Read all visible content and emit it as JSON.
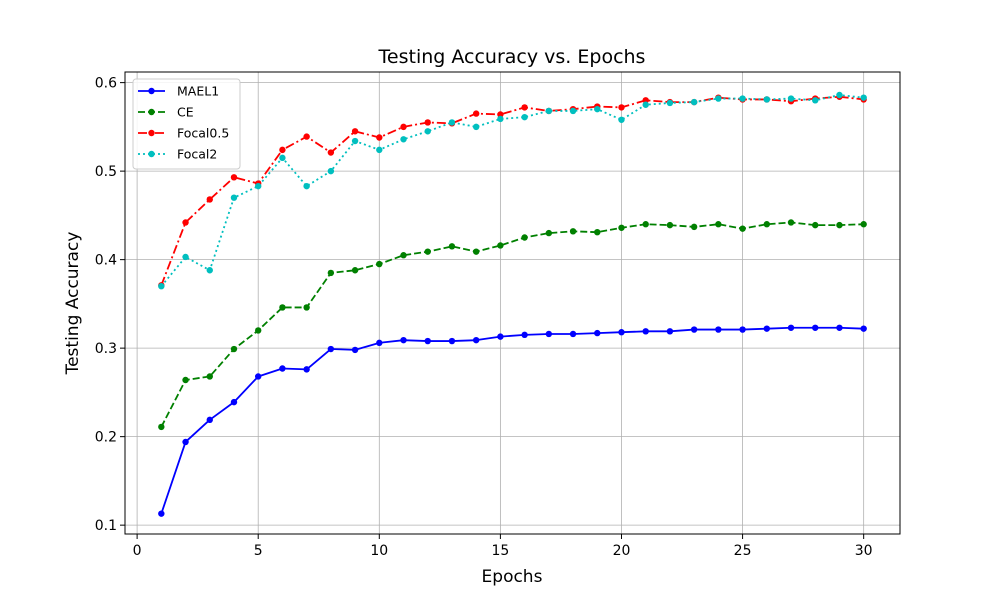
{
  "chart_data": {
    "type": "line",
    "title": "Testing Accuracy vs. Epochs",
    "xlabel": "Epochs",
    "ylabel": "Testing Accuracy",
    "xlim": [
      -0.5,
      31.5
    ],
    "ylim": [
      0.09,
      0.612
    ],
    "xticks": [
      0,
      5,
      10,
      15,
      20,
      25,
      30
    ],
    "yticks": [
      0.1,
      0.2,
      0.3,
      0.4,
      0.5,
      0.6
    ],
    "ytick_labels": [
      "0.1",
      "0.2",
      "0.3",
      "0.4",
      "0.5",
      "0.6"
    ],
    "grid": true,
    "legend_position": "upper-left",
    "x": [
      1,
      2,
      3,
      4,
      5,
      6,
      7,
      8,
      9,
      10,
      11,
      12,
      13,
      14,
      15,
      16,
      17,
      18,
      19,
      20,
      21,
      22,
      23,
      24,
      25,
      26,
      27,
      28,
      29,
      30
    ],
    "series": [
      {
        "name": "MAEL1",
        "color": "#0000ff",
        "dash": "solid",
        "values": [
          0.113,
          0.194,
          0.219,
          0.239,
          0.268,
          0.277,
          0.276,
          0.299,
          0.298,
          0.306,
          0.309,
          0.308,
          0.308,
          0.309,
          0.313,
          0.315,
          0.316,
          0.316,
          0.317,
          0.318,
          0.319,
          0.319,
          0.321,
          0.321,
          0.321,
          0.322,
          0.323,
          0.323,
          0.323,
          0.322
        ]
      },
      {
        "name": "CE",
        "color": "#008000",
        "dash": "dashed",
        "values": [
          0.211,
          0.264,
          0.268,
          0.299,
          0.32,
          0.346,
          0.346,
          0.385,
          0.388,
          0.395,
          0.405,
          0.409,
          0.415,
          0.409,
          0.416,
          0.425,
          0.43,
          0.432,
          0.431,
          0.436,
          0.44,
          0.439,
          0.437,
          0.44,
          0.435,
          0.44,
          0.442,
          0.439,
          0.439,
          0.44
        ]
      },
      {
        "name": "Focal0.5",
        "color": "#ff0000",
        "dash": "dashdot",
        "values": [
          0.371,
          0.442,
          0.468,
          0.493,
          0.486,
          0.524,
          0.539,
          0.521,
          0.545,
          0.538,
          0.55,
          0.555,
          0.554,
          0.565,
          0.564,
          0.572,
          0.568,
          0.57,
          0.573,
          0.572,
          0.58,
          0.578,
          0.578,
          0.583,
          0.581,
          0.581,
          0.579,
          0.582,
          0.584,
          0.581
        ]
      },
      {
        "name": "Focal2",
        "color": "#00bfbf",
        "dash": "dotted",
        "values": [
          0.37,
          0.403,
          0.388,
          0.47,
          0.483,
          0.515,
          0.483,
          0.5,
          0.534,
          0.524,
          0.536,
          0.545,
          0.555,
          0.55,
          0.559,
          0.561,
          0.568,
          0.568,
          0.57,
          0.558,
          0.575,
          0.577,
          0.578,
          0.582,
          0.582,
          0.581,
          0.582,
          0.58,
          0.586,
          0.583
        ]
      }
    ]
  }
}
